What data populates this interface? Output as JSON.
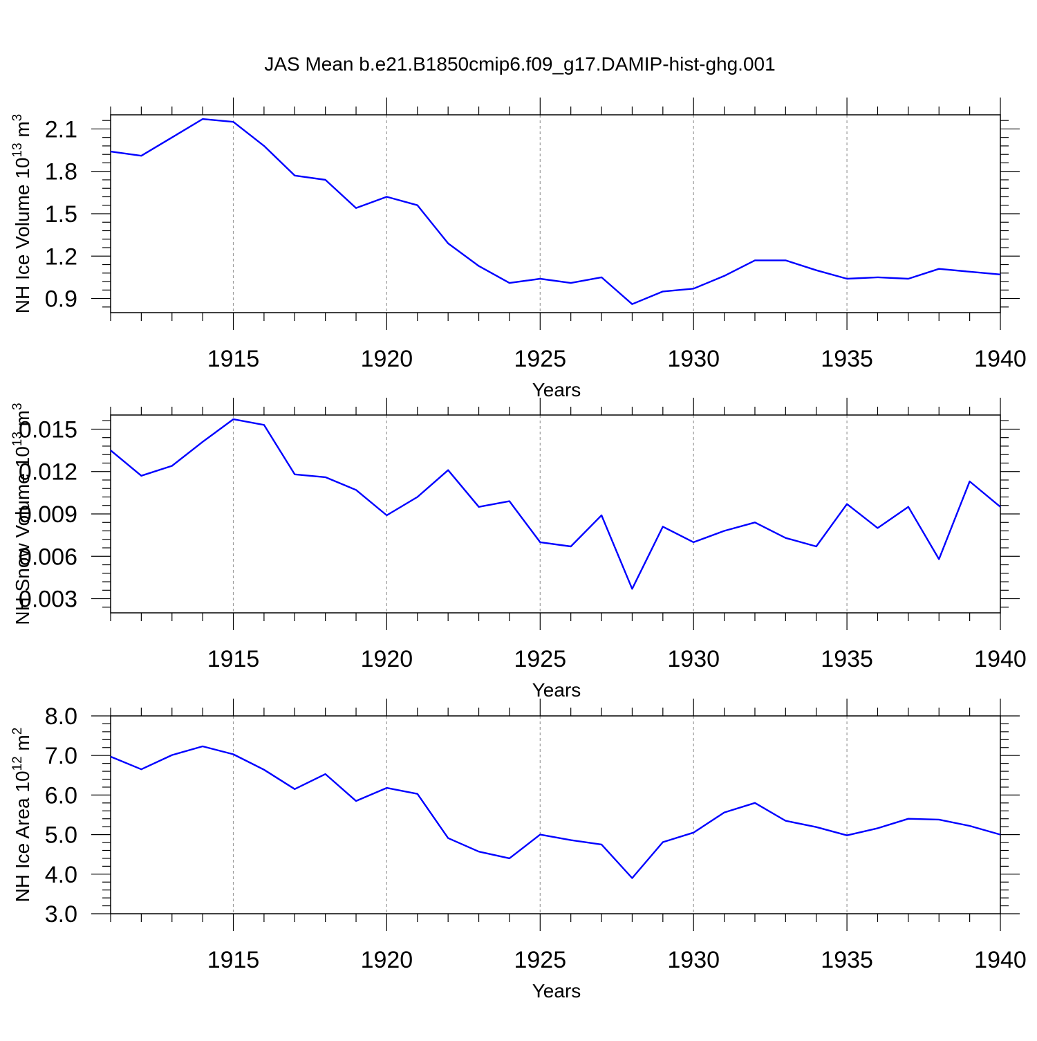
{
  "title": "JAS Mean b.e21.B1850cmip6.f09_g17.DAMIP-hist-ghg.001",
  "colors": {
    "series": "#0000ff",
    "grid": "#9a9a9a",
    "axes": "#000000"
  },
  "chart_data": [
    {
      "type": "line",
      "title": "JAS Mean b.e21.B1850cmip6.f09_g17.DAMIP-hist-ghg.001",
      "xlabel": "Years",
      "ylabel_main": "NH Ice Volume 10",
      "ylabel_sup": "13",
      "ylabel_tail": " m",
      "ylabel_sup2": "3",
      "xlim": [
        1911,
        1940
      ],
      "ylim": [
        0.8,
        2.2
      ],
      "xticks": [
        "1915",
        "1920",
        "1925",
        "1930",
        "1935",
        "1940"
      ],
      "yticks": [
        "0.9",
        "1.2",
        "1.5",
        "1.8",
        "2.1"
      ],
      "grid": "vertical dashed at major x ticks",
      "x": [
        1911,
        1912,
        1913,
        1914,
        1915,
        1916,
        1917,
        1918,
        1919,
        1920,
        1921,
        1922,
        1923,
        1924,
        1925,
        1926,
        1927,
        1928,
        1929,
        1930,
        1931,
        1932,
        1933,
        1934,
        1935,
        1936,
        1937,
        1938,
        1939,
        1940
      ],
      "series": [
        {
          "values": [
            1.94,
            1.91,
            2.04,
            2.17,
            2.15,
            1.98,
            1.77,
            1.74,
            1.54,
            1.62,
            1.56,
            1.29,
            1.13,
            1.01,
            1.04,
            1.01,
            1.05,
            0.86,
            0.95,
            0.97,
            1.06,
            1.17,
            1.17,
            1.1,
            1.04,
            1.05,
            1.04,
            1.11,
            1.09,
            1.07
          ]
        }
      ]
    },
    {
      "type": "line",
      "xlabel": "Years",
      "ylabel_main": "NH Snow Volume 10",
      "ylabel_sup": "13",
      "ylabel_tail": " m",
      "ylabel_sup2": "3",
      "xlim": [
        1911,
        1940
      ],
      "ylim": [
        0.002,
        0.016
      ],
      "xticks": [
        "1915",
        "1920",
        "1925",
        "1930",
        "1935",
        "1940"
      ],
      "yticks": [
        "0.003",
        "0.006",
        "0.009",
        "0.012",
        "0.015"
      ],
      "grid": "vertical dashed at major x ticks",
      "x": [
        1911,
        1912,
        1913,
        1914,
        1915,
        1916,
        1917,
        1918,
        1919,
        1920,
        1921,
        1922,
        1923,
        1924,
        1925,
        1926,
        1927,
        1928,
        1929,
        1930,
        1931,
        1932,
        1933,
        1934,
        1935,
        1936,
        1937,
        1938,
        1939,
        1940
      ],
      "series": [
        {
          "values": [
            0.0135,
            0.0117,
            0.0124,
            0.0141,
            0.0157,
            0.0153,
            0.0118,
            0.0116,
            0.0107,
            0.0089,
            0.0102,
            0.0121,
            0.0095,
            0.0099,
            0.007,
            0.0067,
            0.0089,
            0.0037,
            0.0081,
            0.007,
            0.0078,
            0.0084,
            0.0073,
            0.0067,
            0.0097,
            0.008,
            0.0095,
            0.0058,
            0.0113,
            0.0095
          ]
        }
      ]
    },
    {
      "type": "line",
      "xlabel": "Years",
      "ylabel_main": "NH Ice Area 10",
      "ylabel_sup": "12",
      "ylabel_tail": " m",
      "ylabel_sup2": "2",
      "xlim": [
        1911,
        1940
      ],
      "ylim": [
        3.0,
        8.0
      ],
      "xticks": [
        "1915",
        "1920",
        "1925",
        "1930",
        "1935",
        "1940"
      ],
      "yticks": [
        "3.0",
        "4.0",
        "5.0",
        "6.0",
        "7.0",
        "8.0"
      ],
      "grid": "vertical dashed at major x ticks",
      "x": [
        1911,
        1912,
        1913,
        1914,
        1915,
        1916,
        1917,
        1918,
        1919,
        1920,
        1921,
        1922,
        1923,
        1924,
        1925,
        1926,
        1927,
        1928,
        1929,
        1930,
        1931,
        1932,
        1933,
        1934,
        1935,
        1936,
        1937,
        1938,
        1939,
        1940
      ],
      "series": [
        {
          "values": [
            6.97,
            6.65,
            7.01,
            7.23,
            7.03,
            6.64,
            6.15,
            6.53,
            5.85,
            6.18,
            6.03,
            4.91,
            4.57,
            4.4,
            5.0,
            4.86,
            4.75,
            3.9,
            4.81,
            5.05,
            5.56,
            5.8,
            5.35,
            5.19,
            4.98,
            5.16,
            5.4,
            5.38,
            5.22,
            5.0
          ]
        }
      ]
    }
  ]
}
